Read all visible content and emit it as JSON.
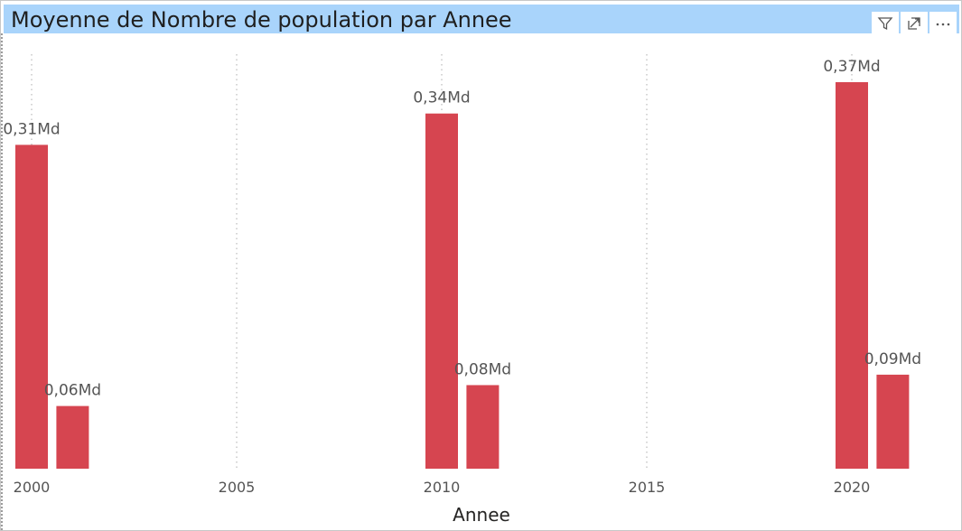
{
  "visual": {
    "title": "Moyenne de Nombre de population par Annee",
    "toolbar_icons": [
      "filter-icon",
      "focus-mode-icon",
      "more-options-icon"
    ],
    "header_color": "#a9d4fb"
  },
  "chart_data": {
    "type": "bar",
    "title": "Moyenne de Nombre de population par Annee",
    "xlabel": "Annee",
    "ylabel": "",
    "x_ticks": [
      "2000",
      "2005",
      "2010",
      "2015",
      "2020"
    ],
    "xlim": [
      2000,
      2021
    ],
    "ylim": [
      0,
      0.37
    ],
    "grid": "vertical dotted",
    "bar_color": "#d64550",
    "points": [
      {
        "x": 2000,
        "value": 0.31,
        "label": "0,31Md"
      },
      {
        "x": 2001,
        "value": 0.06,
        "label": "0,06Md"
      },
      {
        "x": 2010,
        "value": 0.34,
        "label": "0,34Md"
      },
      {
        "x": 2011,
        "value": 0.08,
        "label": "0,08Md"
      },
      {
        "x": 2020,
        "value": 0.37,
        "label": "0,37Md"
      },
      {
        "x": 2021,
        "value": 0.09,
        "label": "0,09Md"
      }
    ]
  }
}
